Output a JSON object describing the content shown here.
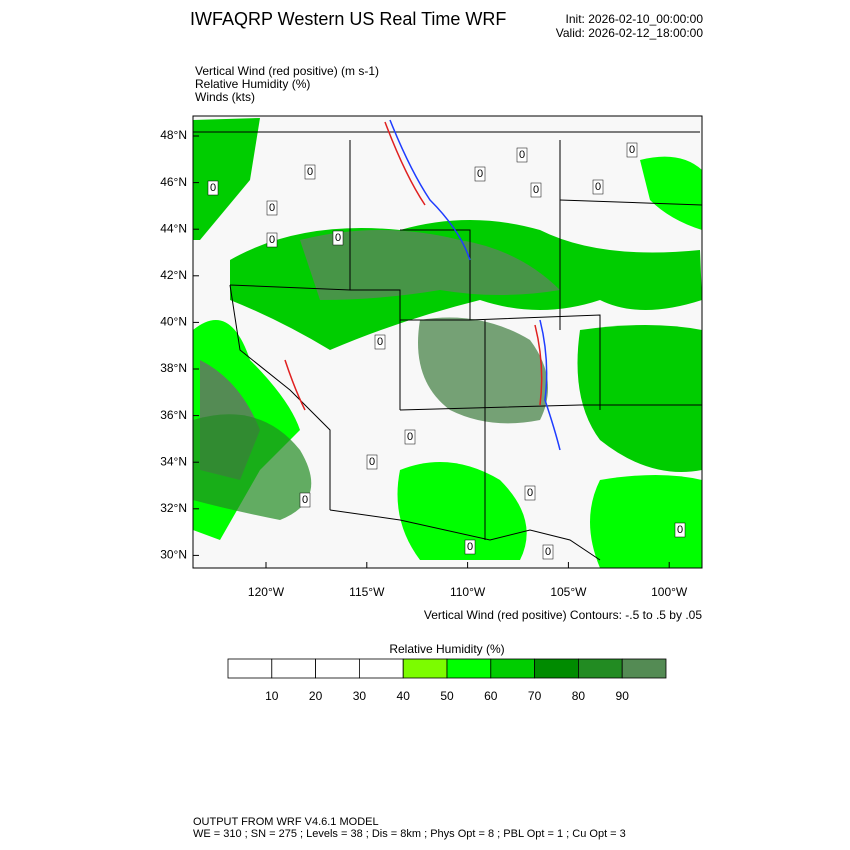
{
  "header": {
    "title": "IWFAQRP Western US Real Time WRF",
    "init": "Init: 2026-02-10_00:00:00",
    "valid": "Valid: 2026-02-12_18:00:00"
  },
  "fields": [
    "Vertical Wind (red positive)   (m s-1)",
    "Relative Humidity   (%)",
    "Winds   (kts)"
  ],
  "map": {
    "lat_labels": [
      "48°N",
      "46°N",
      "44°N",
      "42°N",
      "40°N",
      "38°N",
      "36°N",
      "34°N",
      "32°N",
      "30°N"
    ],
    "lon_labels": [
      "120°W",
      "115°W",
      "110°W",
      "105°W",
      "100°W"
    ],
    "contour_labels": [
      "0",
      "0",
      "0",
      "0",
      "0",
      "0",
      "0",
      "0",
      "0",
      "0",
      "0",
      "0",
      "0",
      "0",
      "0",
      "0",
      "0",
      "0"
    ]
  },
  "contour_note": "Vertical Wind (red positive) Contours: -.5 to .5 by .05",
  "colorbar": {
    "title": "Relative Humidity   (%)",
    "labels": [
      "10",
      "20",
      "30",
      "40",
      "50",
      "60",
      "70",
      "80",
      "90"
    ],
    "colors": [
      "#ffffff",
      "#ffffff",
      "#ffffff",
      "#ffffff",
      "#7cfc00",
      "#00ff00",
      "#00cd00",
      "#008b00",
      "#228b22",
      "#548b54"
    ]
  },
  "footer": [
    "OUTPUT FROM WRF V4.6.1 MODEL",
    "WE = 310 ; SN = 275 ; Levels = 38 ; Dis = 8km ; Phys Opt = 8 ; PBL Opt = 1 ; Cu Opt = 3"
  ]
}
